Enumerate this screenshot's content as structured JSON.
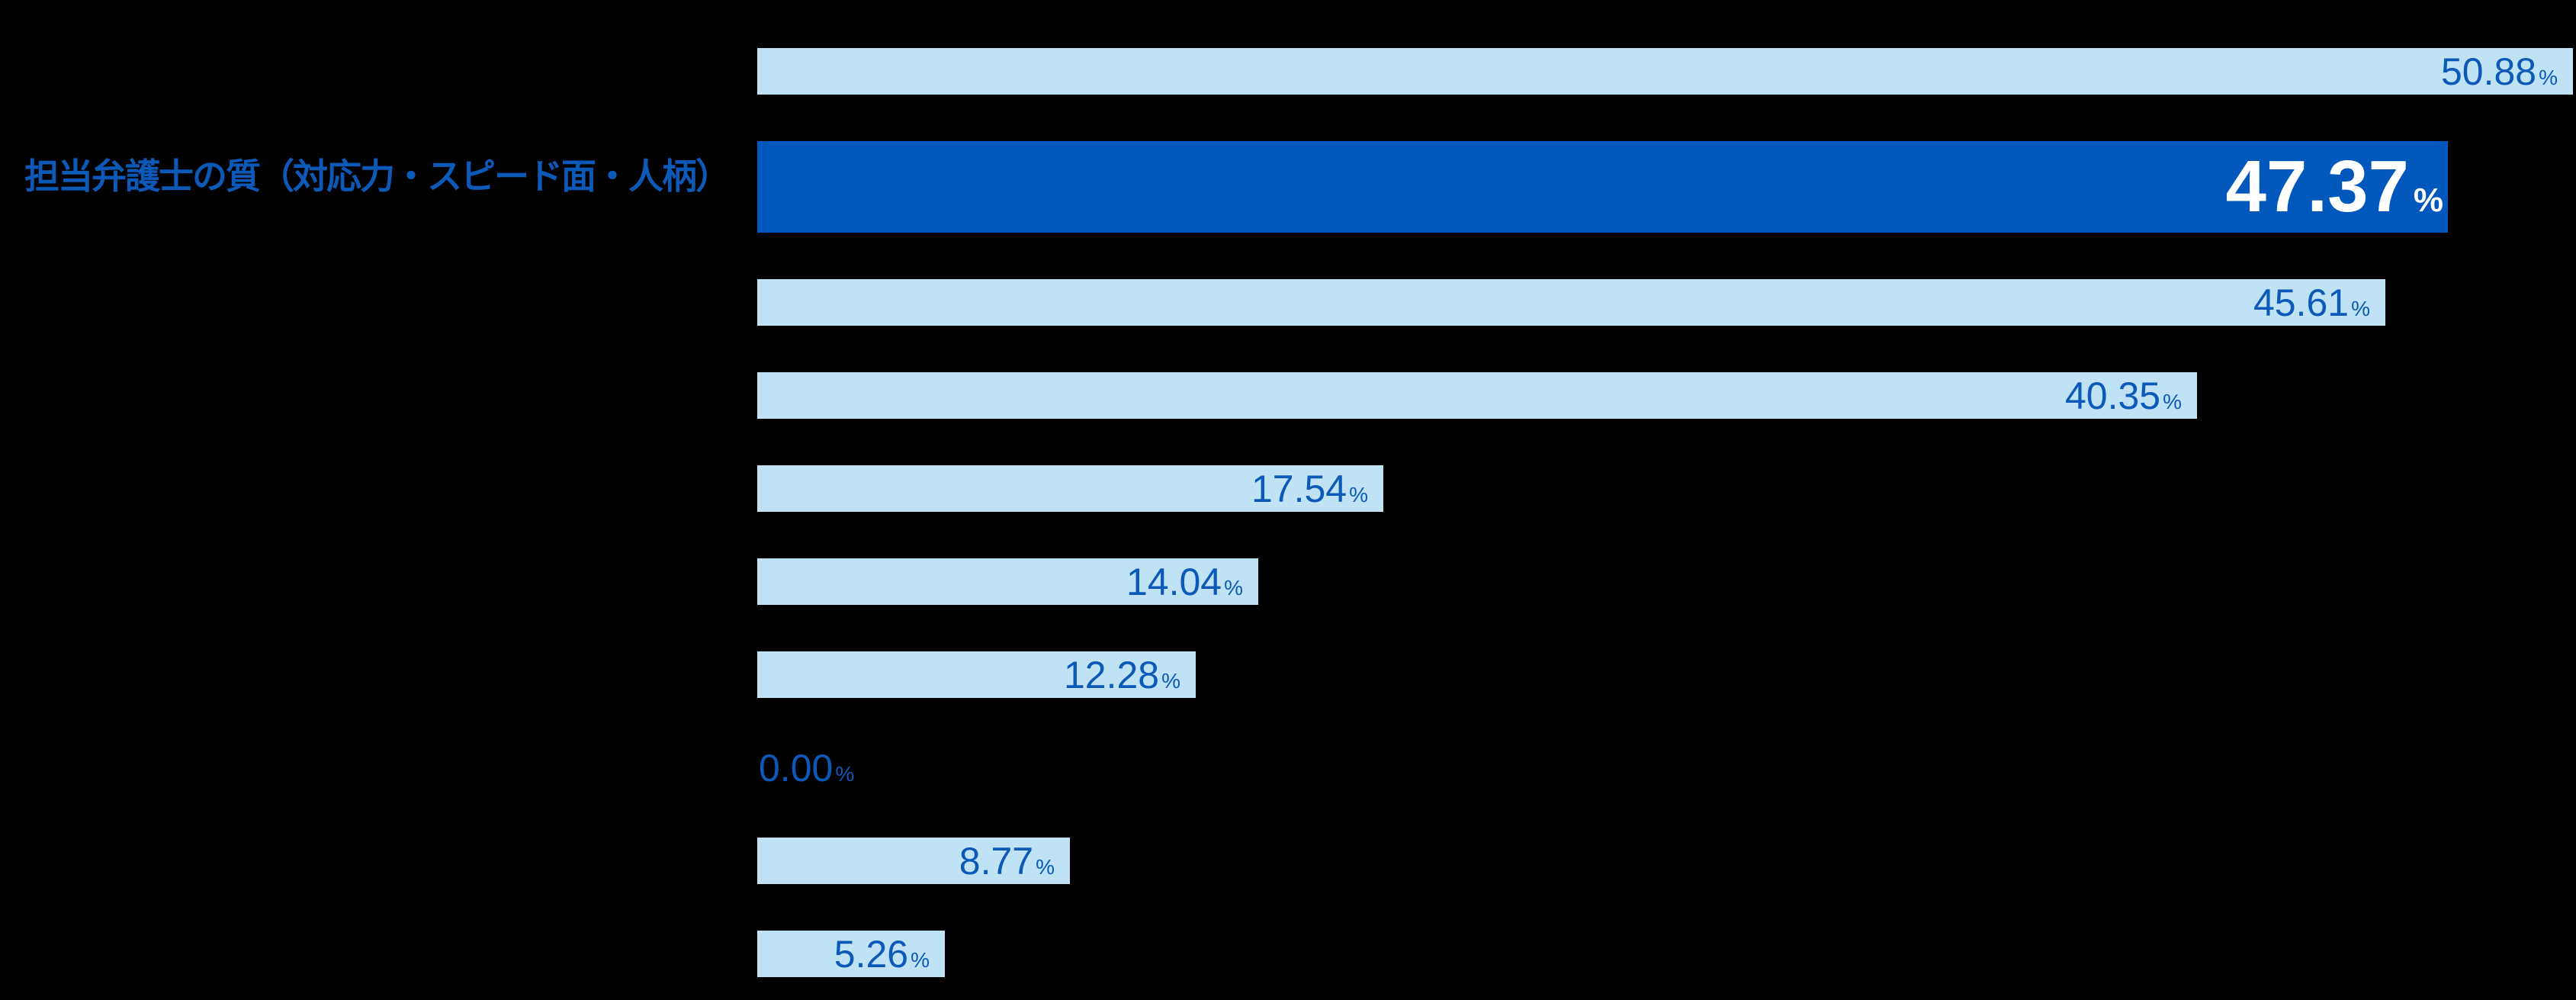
{
  "background_color": "#000000",
  "chart_data": {
    "type": "bar",
    "orientation": "horizontal",
    "title": "",
    "unit_suffix": "%",
    "categories": [
      "",
      "担当弁護士の質（対応力・スピード面・人柄）",
      "",
      "",
      "",
      "",
      "",
      "",
      "",
      ""
    ],
    "values": [
      50.88,
      47.37,
      45.61,
      40.35,
      17.54,
      14.04,
      12.28,
      0,
      8.77,
      5.26
    ],
    "value_labels": [
      "50.88",
      "47.37",
      "45.61",
      "40.35",
      "17.54",
      "14.04",
      "12.28",
      "0.00",
      "8.77",
      "5.26"
    ],
    "highlight_index": 1,
    "xlim": [
      0,
      51
    ],
    "gridlines": false,
    "legend_position": "none",
    "colors": {
      "bar_fill": "#BFE2F5",
      "bar_fill_highlight": "#0057BC",
      "value_text": "#0C59B8",
      "value_text_highlight": "#FFFFFF",
      "category_label_text": "#0C59B8"
    }
  }
}
